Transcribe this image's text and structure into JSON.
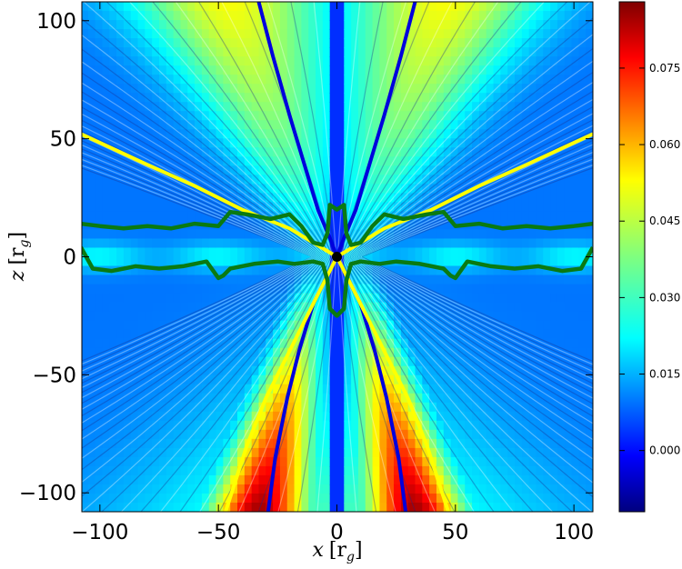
{
  "chart_data": {
    "type": "heatmap",
    "xlabel": "x [r_g]",
    "ylabel": "z [r_g]",
    "xlabel_parts": {
      "var": "x",
      "unit": "[r",
      "sub": "g",
      "close": "]"
    },
    "ylabel_parts": {
      "var": "z",
      "unit": "[r",
      "sub": "g",
      "close": "]"
    },
    "xlim": [
      -108,
      108
    ],
    "ylim": [
      -108,
      108
    ],
    "x_ticks": [
      -100,
      -50,
      0,
      50,
      100
    ],
    "x_tick_labels": [
      "−100",
      "−50",
      "0",
      "50",
      "100"
    ],
    "y_ticks": [
      100,
      50,
      0,
      -50,
      -100
    ],
    "y_tick_labels": [
      "100",
      "50",
      "0",
      "−50",
      "−100"
    ],
    "colorbar": {
      "colormap": "jet",
      "range": [
        -0.012,
        0.088
      ],
      "ticks": [
        0.075,
        0.06,
        0.045,
        0.03,
        0.015,
        0.0
      ],
      "tick_labels": [
        "0.075",
        "0.060",
        "0.045",
        "0.030",
        "0.015",
        "0.000"
      ]
    },
    "field": {
      "description": "color-coded field with streamline texture, symmetric about x = 0",
      "lower_peak_near_x_abs": 33,
      "lower_peak_value": 0.085,
      "upper_max_value": 0.05,
      "midplane_value": 0.012
    },
    "series": [
      {
        "color": "#0000dd",
        "line_kind": "parabola-like funnel boundary",
        "points_right_upper": [
          [
            0,
            0
          ],
          [
            3,
            8
          ],
          [
            8,
            20
          ],
          [
            14,
            40
          ],
          [
            20,
            60
          ],
          [
            27,
            85
          ],
          [
            33,
            108
          ]
        ],
        "points_right_lower": [
          [
            0,
            0
          ],
          [
            4,
            -8
          ],
          [
            10,
            -20
          ],
          [
            16,
            -40
          ],
          [
            21,
            -60
          ],
          [
            26,
            -85
          ],
          [
            29,
            -108
          ]
        ]
      },
      {
        "color": "#ffff00",
        "line_kind": "boundary curve",
        "points_right_upper": [
          [
            0,
            0
          ],
          [
            20,
            12
          ],
          [
            40,
            20
          ],
          [
            60,
            30
          ],
          [
            80,
            39
          ],
          [
            108,
            52
          ]
        ],
        "points_right_lower": [
          [
            0,
            0
          ],
          [
            10,
            -20
          ],
          [
            20,
            -40
          ],
          [
            30,
            -60
          ],
          [
            38,
            -80
          ],
          [
            47,
            -108
          ]
        ]
      },
      {
        "color": "#0a7a12",
        "line_kind": "closed contour",
        "points_right_upper": [
          [
            0,
            20
          ],
          [
            3,
            22
          ],
          [
            4,
            10
          ],
          [
            6,
            5
          ],
          [
            10,
            6
          ],
          [
            15,
            13
          ],
          [
            20,
            18
          ],
          [
            28,
            16
          ],
          [
            38,
            18
          ],
          [
            45,
            19
          ],
          [
            50,
            13
          ],
          [
            60,
            14
          ],
          [
            70,
            12
          ],
          [
            80,
            13
          ],
          [
            90,
            12
          ],
          [
            100,
            13
          ],
          [
            108,
            14
          ]
        ],
        "points_right_lower": [
          [
            0,
            -25
          ],
          [
            3,
            -22
          ],
          [
            4,
            -10
          ],
          [
            6,
            -3
          ],
          [
            10,
            -2
          ],
          [
            18,
            -3
          ],
          [
            25,
            -2
          ],
          [
            35,
            -3
          ],
          [
            45,
            -5
          ],
          [
            48,
            -8
          ],
          [
            50,
            -9
          ],
          [
            55,
            -2
          ],
          [
            65,
            -4
          ],
          [
            75,
            -5
          ],
          [
            85,
            -4
          ],
          [
            95,
            -6
          ],
          [
            103,
            -5
          ],
          [
            108,
            4
          ]
        ]
      }
    ],
    "black_hole_marker": {
      "x": 0,
      "z": 0,
      "color": "#000000"
    }
  }
}
